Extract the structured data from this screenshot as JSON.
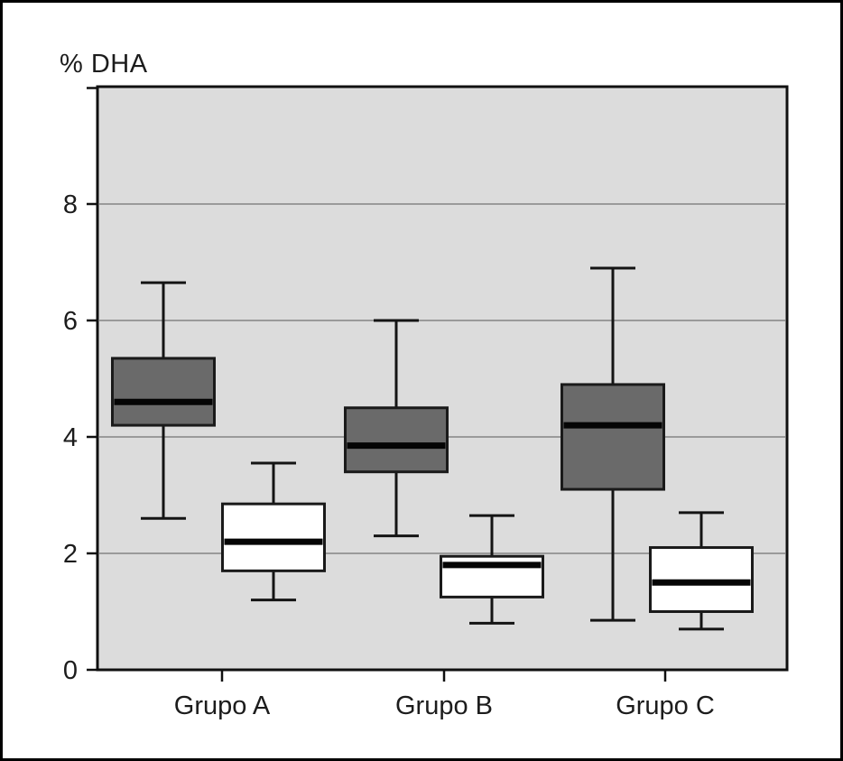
{
  "chart_data": {
    "type": "boxplot",
    "title": "% DHA",
    "ylabel": "% DHA",
    "xlabel": "",
    "categories": [
      "Grupo A",
      "Grupo B",
      "Grupo C"
    ],
    "series": [
      {
        "name": "dark",
        "fill": "#6a6a6a",
        "boxes": [
          {
            "category": "Grupo A",
            "whisker_low": 2.6,
            "q1": 4.2,
            "median": 4.6,
            "q3": 5.35,
            "whisker_high": 6.65
          },
          {
            "category": "Grupo B",
            "whisker_low": 2.3,
            "q1": 3.4,
            "median": 3.85,
            "q3": 4.5,
            "whisker_high": 6.0
          },
          {
            "category": "Grupo C",
            "whisker_low": 0.85,
            "q1": 3.1,
            "median": 4.2,
            "q3": 4.9,
            "whisker_high": 6.9
          }
        ]
      },
      {
        "name": "white",
        "fill": "#ffffff",
        "boxes": [
          {
            "category": "Grupo A",
            "whisker_low": 1.2,
            "q1": 1.7,
            "median": 2.2,
            "q3": 2.85,
            "whisker_high": 3.55
          },
          {
            "category": "Grupo B",
            "whisker_low": 0.8,
            "q1": 1.25,
            "median": 1.8,
            "q3": 1.95,
            "whisker_high": 2.65
          },
          {
            "category": "Grupo C",
            "whisker_low": 0.7,
            "q1": 1.0,
            "median": 1.5,
            "q3": 2.1,
            "whisker_high": 2.7
          }
        ]
      }
    ],
    "yticks": [
      0,
      2,
      4,
      6,
      8
    ],
    "ylim": [
      0,
      10
    ],
    "grid": "horizontal",
    "legend": "none",
    "colors": {
      "plot_bg": "#dcdcdc",
      "gridline": "#9a9a9a",
      "frame": "#101010",
      "box_stroke": "#1a1a1a",
      "median": "#050505",
      "whisker": "#141414",
      "text": "#1c1c1c"
    }
  }
}
